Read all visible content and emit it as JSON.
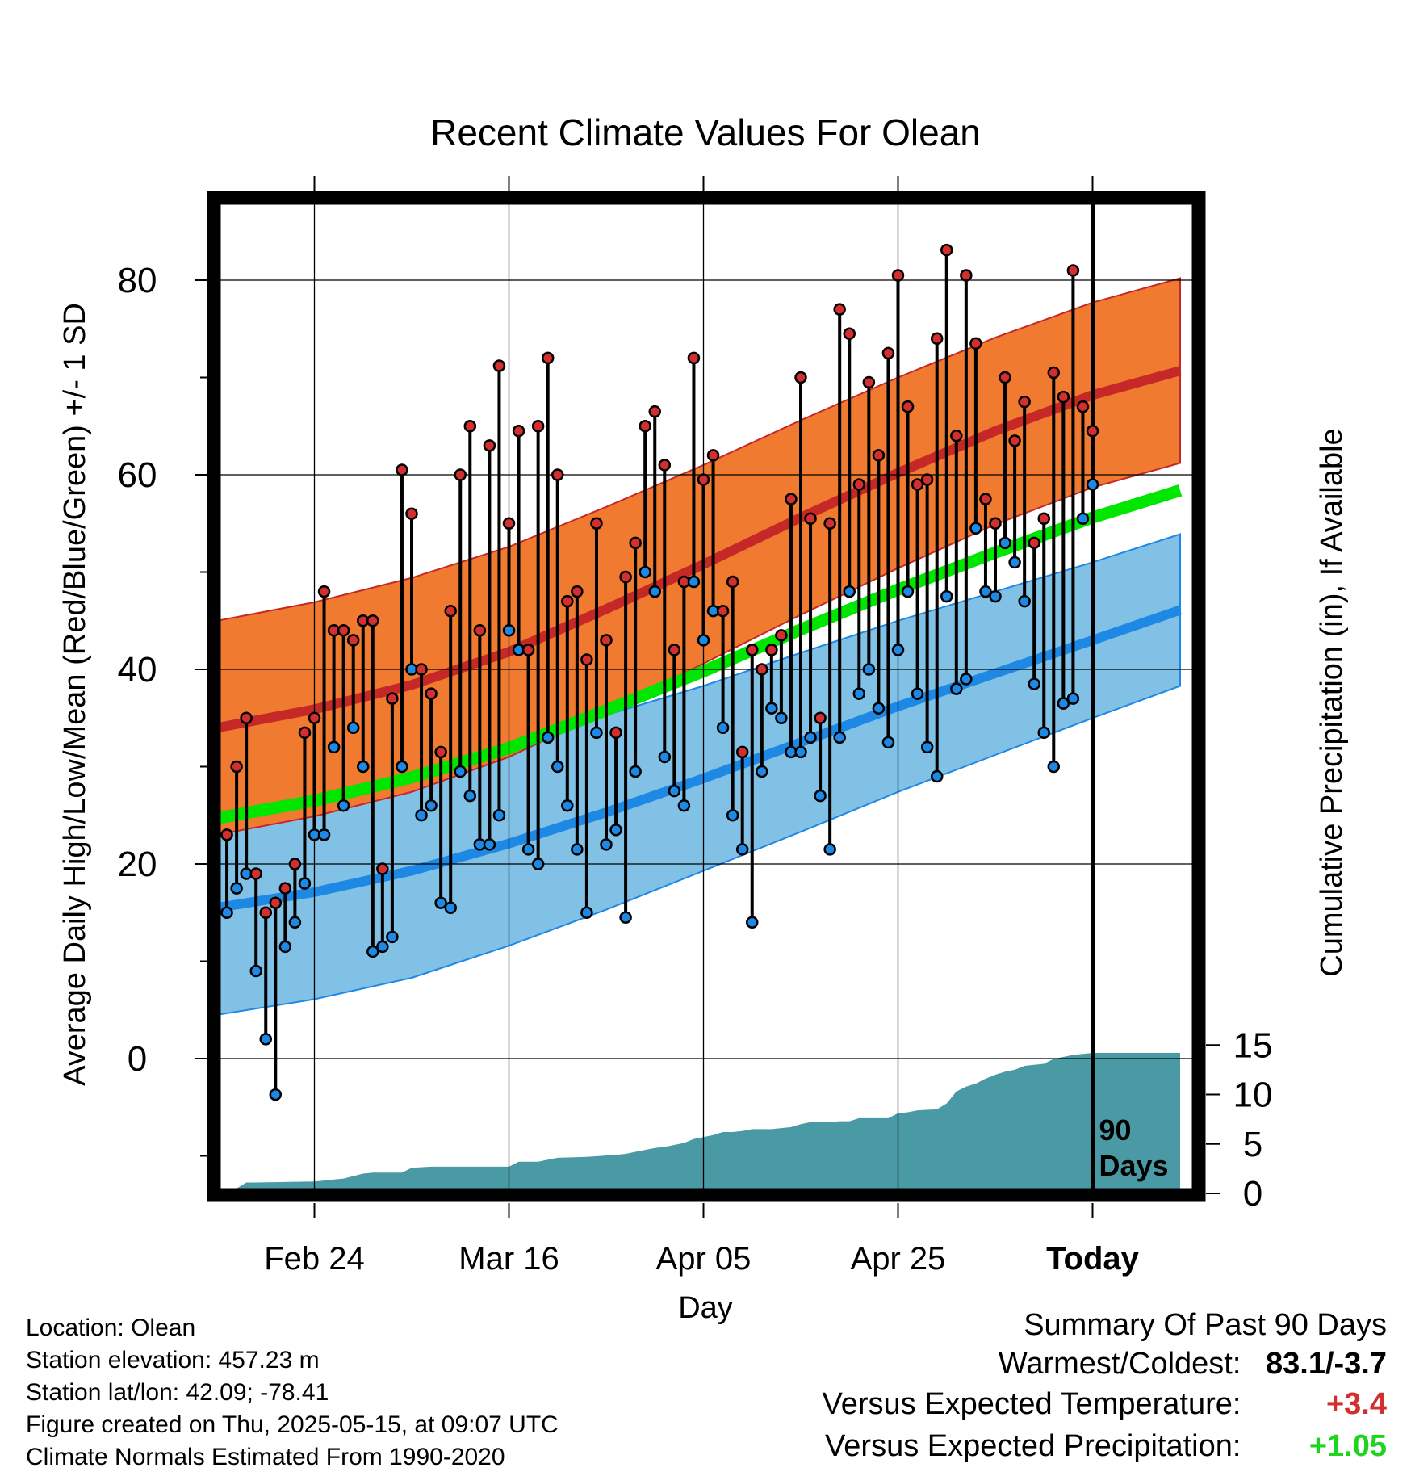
{
  "chart_data": {
    "type": "line",
    "title": "Recent Climate Values For Olean",
    "xlabel": "Day",
    "ylabel": "Average Daily High/Low/Mean (Red/Blue/Green) +/- 1 SD",
    "y2label": "Cumulative Precipitation (in), If Available",
    "x_range": [
      -90,
      10
    ],
    "ylim": [
      -13,
      88
    ],
    "y2lim": [
      0,
      20
    ],
    "y_ticks": [
      0,
      20,
      40,
      60,
      80
    ],
    "y2_ticks": [
      0,
      5,
      10,
      15
    ],
    "x_ticks": [
      {
        "day": -80,
        "label": "Feb 24"
      },
      {
        "day": -60,
        "label": "Mar 16"
      },
      {
        "day": -40,
        "label": "Apr 05"
      },
      {
        "day": -20,
        "label": "Apr 25"
      },
      {
        "day": 0,
        "label": "Today"
      }
    ],
    "today_marker": {
      "day": 0,
      "label_line1": "90",
      "label_line2": "Days"
    },
    "colors": {
      "high_band": "#f07a30",
      "high_mean": "#c62828",
      "low_band": "#82c1e6",
      "low_mean": "#1e88e5",
      "avg_mean": "#00e600",
      "precip": "#4a9aa5",
      "high_point": "#d32f2f",
      "low_point": "#1e88e5"
    },
    "normals": {
      "days": [
        -90,
        -80,
        -70,
        -60,
        -50,
        -40,
        -30,
        -20,
        -10,
        0,
        9
      ],
      "high_mean": [
        34,
        35.9,
        38.4,
        41.8,
        46.2,
        50.8,
        55.6,
        60.2,
        64.5,
        68.2,
        70.7
      ],
      "high_sd": [
        11,
        11,
        11,
        10.8,
        10.5,
        10.2,
        10,
        9.8,
        9.6,
        9.5,
        9.5
      ],
      "low_mean": [
        15.5,
        17.1,
        19.3,
        22.1,
        25.3,
        28.8,
        32.5,
        36.2,
        39.6,
        43,
        46.1
      ],
      "low_sd": [
        11,
        11,
        11,
        10.5,
        10,
        9.5,
        9.2,
        8.8,
        8.4,
        8,
        7.8
      ],
      "avg_mean": [
        24.7,
        26.5,
        28.9,
        31.9,
        35.8,
        39.8,
        44.1,
        48.2,
        52,
        55.6,
        58.4
      ]
    },
    "observations": [
      {
        "day": -89,
        "high": 23,
        "low": 15
      },
      {
        "day": -88,
        "high": 30,
        "low": 17.5
      },
      {
        "day": -87,
        "high": 35,
        "low": 19
      },
      {
        "day": -86,
        "high": 19,
        "low": 9
      },
      {
        "day": -85,
        "high": 15,
        "low": 2
      },
      {
        "day": -84,
        "high": 16,
        "low": -3.7
      },
      {
        "day": -83,
        "high": 17.5,
        "low": 11.5
      },
      {
        "day": -82,
        "high": 20,
        "low": 14
      },
      {
        "day": -81,
        "high": 33.5,
        "low": 18
      },
      {
        "day": -80,
        "high": 35,
        "low": 23
      },
      {
        "day": -79,
        "high": 48,
        "low": 23
      },
      {
        "day": -78,
        "high": 44,
        "low": 32
      },
      {
        "day": -77,
        "high": 44,
        "low": 26
      },
      {
        "day": -76,
        "high": 43,
        "low": 34
      },
      {
        "day": -75,
        "high": 45,
        "low": 30
      },
      {
        "day": -74,
        "high": 45,
        "low": 11
      },
      {
        "day": -73,
        "high": 19.5,
        "low": 11.5
      },
      {
        "day": -72,
        "high": 37,
        "low": 12.5
      },
      {
        "day": -71,
        "high": 60.5,
        "low": 30
      },
      {
        "day": -70,
        "high": 56,
        "low": 40
      },
      {
        "day": -69,
        "high": 40,
        "low": 25
      },
      {
        "day": -68,
        "high": 37.5,
        "low": 26
      },
      {
        "day": -67,
        "high": 31.5,
        "low": 16
      },
      {
        "day": -66,
        "high": 46,
        "low": 15.5
      },
      {
        "day": -65,
        "high": 60,
        "low": 29.5
      },
      {
        "day": -64,
        "high": 65,
        "low": 27
      },
      {
        "day": -63,
        "high": 44,
        "low": 22
      },
      {
        "day": -62,
        "high": 63,
        "low": 22
      },
      {
        "day": -61,
        "high": 71.2,
        "low": 25
      },
      {
        "day": -60,
        "high": 55,
        "low": 44
      },
      {
        "day": -59,
        "high": 64.5,
        "low": 42
      },
      {
        "day": -58,
        "high": 42,
        "low": 21.5
      },
      {
        "day": -57,
        "high": 65,
        "low": 20
      },
      {
        "day": -56,
        "high": 72,
        "low": 33
      },
      {
        "day": -55,
        "high": 60,
        "low": 30
      },
      {
        "day": -54,
        "high": 47,
        "low": 26
      },
      {
        "day": -53,
        "high": 48,
        "low": 21.5
      },
      {
        "day": -52,
        "high": 41,
        "low": 15
      },
      {
        "day": -51,
        "high": 55,
        "low": 33.5
      },
      {
        "day": -50,
        "high": 43,
        "low": 22
      },
      {
        "day": -49,
        "high": 33.5,
        "low": 23.5
      },
      {
        "day": -48,
        "high": 49.5,
        "low": 14.5
      },
      {
        "day": -47,
        "high": 53,
        "low": 29.5
      },
      {
        "day": -46,
        "high": 65,
        "low": 50
      },
      {
        "day": -45,
        "high": 66.5,
        "low": 48
      },
      {
        "day": -44,
        "high": 61,
        "low": 31
      },
      {
        "day": -43,
        "high": 42,
        "low": 27.5
      },
      {
        "day": -42,
        "high": 49,
        "low": 26
      },
      {
        "day": -41,
        "high": 72,
        "low": 49
      },
      {
        "day": -40,
        "high": 59.5,
        "low": 43
      },
      {
        "day": -39,
        "high": 62,
        "low": 46
      },
      {
        "day": -38,
        "high": 46,
        "low": 34
      },
      {
        "day": -37,
        "high": 49,
        "low": 25
      },
      {
        "day": -36,
        "high": 31.5,
        "low": 21.5
      },
      {
        "day": -35,
        "high": 42,
        "low": 14
      },
      {
        "day": -34,
        "high": 40,
        "low": 29.5
      },
      {
        "day": -33,
        "high": 42,
        "low": 36
      },
      {
        "day": -32,
        "high": 43.5,
        "low": 35
      },
      {
        "day": -31,
        "high": 57.5,
        "low": 31.5
      },
      {
        "day": -30,
        "high": 70,
        "low": 31.5
      },
      {
        "day": -29,
        "high": 55.5,
        "low": 33
      },
      {
        "day": -28,
        "high": 35,
        "low": 27
      },
      {
        "day": -27,
        "high": 55,
        "low": 21.5
      },
      {
        "day": -26,
        "high": 77,
        "low": 33
      },
      {
        "day": -25,
        "high": 74.5,
        "low": 48
      },
      {
        "day": -24,
        "high": 59,
        "low": 37.5
      },
      {
        "day": -23,
        "high": 69.5,
        "low": 40
      },
      {
        "day": -22,
        "high": 62,
        "low": 36
      },
      {
        "day": -21,
        "high": 72.5,
        "low": 32.5
      },
      {
        "day": -20,
        "high": 80.5,
        "low": 42
      },
      {
        "day": -19,
        "high": 67,
        "low": 48
      },
      {
        "day": -18,
        "high": 59,
        "low": 37.5
      },
      {
        "day": -17,
        "high": 59.5,
        "low": 32
      },
      {
        "day": -16,
        "high": 74,
        "low": 29
      },
      {
        "day": -15,
        "high": 83.1,
        "low": 47.5
      },
      {
        "day": -14,
        "high": 64,
        "low": 38
      },
      {
        "day": -13,
        "high": 80.5,
        "low": 39
      },
      {
        "day": -12,
        "high": 73.5,
        "low": 54.5
      },
      {
        "day": -11,
        "high": 57.5,
        "low": 48
      },
      {
        "day": -10,
        "high": 55,
        "low": 47.5
      },
      {
        "day": -9,
        "high": 70,
        "low": 53
      },
      {
        "day": -8,
        "high": 63.5,
        "low": 51
      },
      {
        "day": -7,
        "high": 67.5,
        "low": 47
      },
      {
        "day": -6,
        "high": 53,
        "low": 38.5
      },
      {
        "day": -5,
        "high": 55.5,
        "low": 33.5
      },
      {
        "day": -4,
        "high": 70.5,
        "low": 30
      },
      {
        "day": -3,
        "high": 68,
        "low": 36.5
      },
      {
        "day": -2,
        "high": 81,
        "low": 37
      },
      {
        "day": -1,
        "high": 67,
        "low": 55.5
      },
      {
        "day": 0,
        "high": 64.5,
        "low": 59
      }
    ],
    "precip_cumulative": {
      "days": [
        -90,
        -89,
        -88,
        -87,
        -86,
        -80,
        -79,
        -78,
        -77,
        -75,
        -74,
        -72,
        -71,
        -70,
        -68,
        -60,
        -59,
        -57,
        -56,
        -55,
        -52,
        -49,
        -48,
        -47,
        -46,
        -45,
        -44,
        -43,
        -42,
        -41,
        -40,
        -39,
        -38,
        -37,
        -36,
        -35,
        -34,
        -33,
        -31,
        -30,
        -29,
        -27,
        -26,
        -25,
        -24,
        -23,
        -21,
        -20,
        -19,
        -18,
        -16,
        -15,
        -14,
        -13,
        -12,
        -11,
        -10,
        -9,
        -8,
        -7,
        -5,
        -4,
        -2,
        -1,
        0,
        9
      ],
      "values": [
        0,
        0,
        0.5,
        1.1,
        1.1,
        1.2,
        1.3,
        1.4,
        1.5,
        2,
        2.1,
        2.1,
        2.1,
        2.6,
        2.7,
        2.7,
        3.2,
        3.2,
        3.4,
        3.6,
        3.7,
        3.9,
        4.0,
        4.2,
        4.4,
        4.6,
        4.7,
        4.9,
        5.1,
        5.5,
        5.7,
        5.9,
        6.2,
        6.2,
        6.3,
        6.5,
        6.5,
        6.5,
        6.7,
        7.0,
        7.2,
        7.2,
        7.3,
        7.3,
        7.6,
        7.6,
        7.6,
        8.1,
        8.2,
        8.4,
        8.5,
        9.1,
        10.3,
        10.8,
        11.1,
        11.6,
        12.0,
        12.3,
        12.5,
        12.9,
        13.1,
        13.6,
        14.0,
        14.1,
        14.2,
        14.2
      ]
    }
  },
  "meta": {
    "location": "Location: Olean",
    "elevation": "Station elevation: 457.23 m",
    "latlon": "Station lat/lon: 42.09; -78.41",
    "created": "Figure created on Thu, 2025-05-15, at 09:07 UTC",
    "normals": "Climate Normals Estimated From 1990-2020"
  },
  "summary": {
    "title": "Summary Of Past 90 Days",
    "warmest_coldest_label": "Warmest/Coldest:",
    "warmest_coldest_value": "83.1/-3.7",
    "temp_label": "Versus Expected Temperature:",
    "temp_value": "+3.4",
    "temp_color": "#d32f2f",
    "precip_label": "Versus Expected Precipitation:",
    "precip_value": "+1.05",
    "precip_color": "#1ed51e"
  }
}
